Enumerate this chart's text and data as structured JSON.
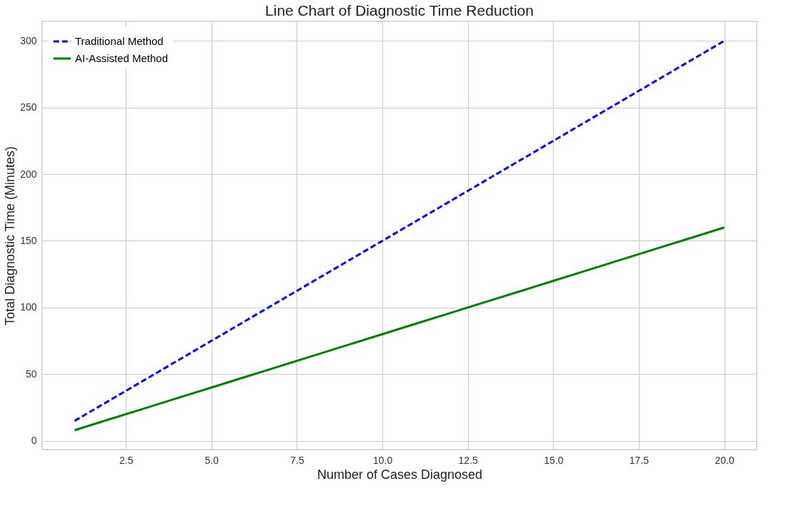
{
  "chart_data": {
    "type": "line",
    "title": "Line Chart of Diagnostic Time Reduction",
    "xlabel": "Number of Cases Diagnosed",
    "ylabel": "Total Diagnostic Time (Minutes)",
    "x": [
      1,
      2,
      3,
      4,
      5,
      6,
      7,
      8,
      9,
      10,
      11,
      12,
      13,
      14,
      15,
      16,
      17,
      18,
      19,
      20
    ],
    "series": [
      {
        "name": "Traditional Method",
        "color": "#0000ff",
        "line_style": "dashed",
        "values": [
          15,
          30,
          45,
          60,
          75,
          90,
          105,
          120,
          135,
          150,
          165,
          180,
          195,
          210,
          225,
          240,
          255,
          270,
          285,
          300
        ]
      },
      {
        "name": "AI-Assisted Method",
        "color": "#008000",
        "line_style": "solid",
        "values": [
          8,
          16,
          24,
          32,
          40,
          48,
          56,
          64,
          72,
          80,
          88,
          96,
          104,
          112,
          120,
          128,
          136,
          144,
          152,
          160
        ]
      }
    ],
    "xlim": [
      0.05,
      20.95
    ],
    "ylim": [
      -6.6,
      314.6
    ],
    "xticks": [
      {
        "value": 2.5,
        "label": "2.5"
      },
      {
        "value": 5,
        "label": "5.0"
      },
      {
        "value": 7.5,
        "label": "7.5"
      },
      {
        "value": 10,
        "label": "10.0"
      },
      {
        "value": 12.5,
        "label": "12.5"
      },
      {
        "value": 15,
        "label": "15.0"
      },
      {
        "value": 17.5,
        "label": "17.5"
      },
      {
        "value": 20,
        "label": "20.0"
      }
    ],
    "yticks": [
      0,
      50,
      100,
      150,
      200,
      250,
      300
    ],
    "grid": true,
    "legend": "top left"
  }
}
